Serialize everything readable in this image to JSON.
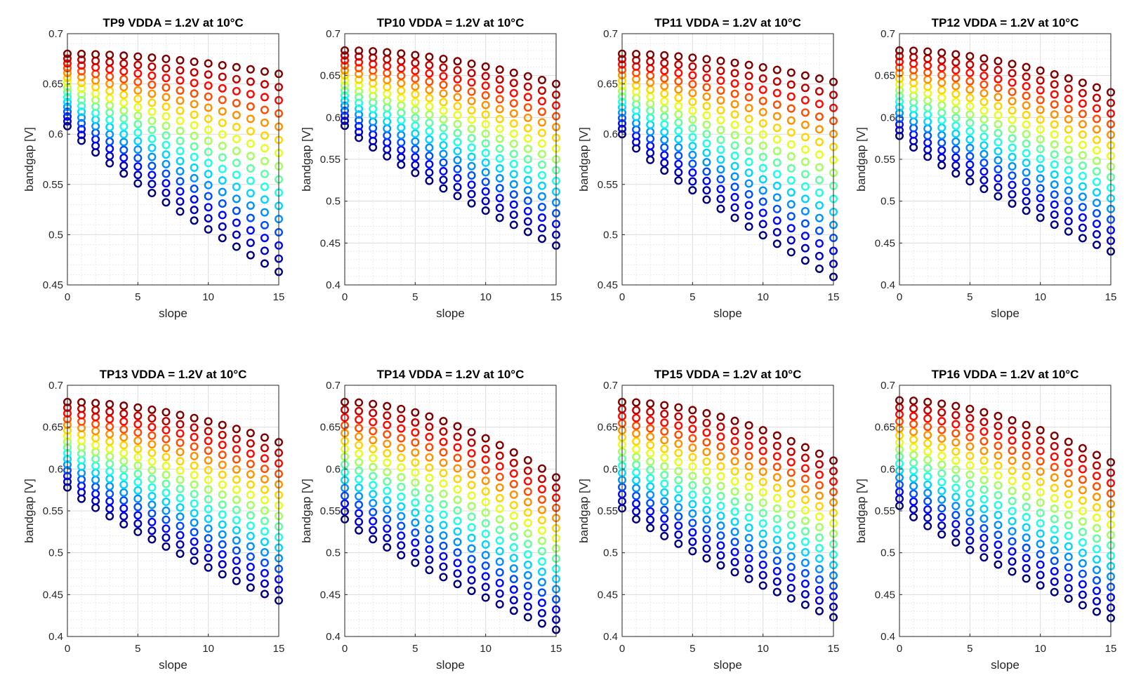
{
  "figure": {
    "background": "#ffffff"
  },
  "chart_data": [
    {
      "type": "scatter",
      "title": "TP9 VDDA = 1.2V at 10°C",
      "xlabel": "slope",
      "ylabel": "bandgap [V]",
      "xlim": [
        0,
        15
      ],
      "ylim": [
        0.45,
        0.7
      ],
      "xticks": [
        0,
        5,
        10,
        15
      ],
      "yticks": [
        0.45,
        0.5,
        0.55,
        0.6,
        0.65,
        0.7
      ],
      "ytick_labels": [
        "0.45",
        "0.5",
        "0.55",
        "0.6",
        "0.65",
        "0.7"
      ],
      "top": 0.68,
      "x0_bottom": 0.608,
      "x15_top": 0.66,
      "x15_bottom": 0.463,
      "levels": 16,
      "colormap": "jet",
      "grid": true
    },
    {
      "type": "scatter",
      "title": "TP10 VDDA = 1.2V at 10°C",
      "xlabel": "slope",
      "ylabel": "bandgap [V]",
      "xlim": [
        0,
        15
      ],
      "ylim": [
        0.4,
        0.7
      ],
      "xticks": [
        0,
        5,
        10,
        15
      ],
      "yticks": [
        0.4,
        0.45,
        0.5,
        0.55,
        0.6,
        0.65,
        0.7
      ],
      "ytick_labels": [
        "0.4",
        "0.45",
        "0.5",
        "0.55",
        "0.6",
        "0.65",
        "0.7"
      ],
      "top": 0.68,
      "x0_bottom": 0.59,
      "x15_top": 0.64,
      "x15_bottom": 0.447,
      "levels": 16,
      "colormap": "jet",
      "grid": true
    },
    {
      "type": "scatter",
      "title": "TP11 VDDA = 1.2V at 10°C",
      "xlabel": "slope",
      "ylabel": "bandgap [V]",
      "xlim": [
        0,
        15
      ],
      "ylim": [
        0.45,
        0.7
      ],
      "xticks": [
        0,
        5,
        10,
        15
      ],
      "yticks": [
        0.45,
        0.5,
        0.55,
        0.6,
        0.65,
        0.7
      ],
      "ytick_labels": [
        "0.45",
        "0.5",
        "0.55",
        "0.6",
        "0.65",
        "0.7"
      ],
      "top": 0.68,
      "x0_bottom": 0.6,
      "x15_top": 0.652,
      "x15_bottom": 0.458,
      "levels": 16,
      "colormap": "jet",
      "grid": true
    },
    {
      "type": "scatter",
      "title": "TP12 VDDA = 1.2V at 10°C",
      "xlabel": "slope",
      "ylabel": "bandgap [V]",
      "xlim": [
        0,
        15
      ],
      "ylim": [
        0.4,
        0.7
      ],
      "xticks": [
        0,
        5,
        10,
        15
      ],
      "yticks": [
        0.4,
        0.45,
        0.5,
        0.55,
        0.6,
        0.65,
        0.7
      ],
      "ytick_labels": [
        "0.4",
        "0.45",
        "0.5",
        "0.55",
        "0.6",
        "0.65",
        "0.7"
      ],
      "top": 0.68,
      "x0_bottom": 0.578,
      "x15_top": 0.63,
      "x15_bottom": 0.44,
      "levels": 16,
      "colormap": "jet",
      "grid": true
    },
    {
      "type": "scatter",
      "title": "TP13 VDDA = 1.2V at 10°C",
      "xlabel": "slope",
      "ylabel": "bandgap [V]",
      "xlim": [
        0,
        15
      ],
      "ylim": [
        0.4,
        0.7
      ],
      "xticks": [
        0,
        5,
        10,
        15
      ],
      "yticks": [
        0.4,
        0.45,
        0.5,
        0.55,
        0.6,
        0.65,
        0.7
      ],
      "ytick_labels": [
        "0.4",
        "0.45",
        "0.5",
        "0.55",
        "0.6",
        "0.65",
        "0.7"
      ],
      "top": 0.68,
      "x0_bottom": 0.578,
      "x15_top": 0.632,
      "x15_bottom": 0.443,
      "levels": 16,
      "colormap": "jet",
      "grid": true
    },
    {
      "type": "scatter",
      "title": "TP14 VDDA = 1.2V at 10°C",
      "xlabel": "slope",
      "ylabel": "bandgap [V]",
      "xlim": [
        0,
        15
      ],
      "ylim": [
        0.4,
        0.7
      ],
      "xticks": [
        0,
        5,
        10,
        15
      ],
      "yticks": [
        0.4,
        0.45,
        0.5,
        0.55,
        0.6,
        0.65,
        0.7
      ],
      "ytick_labels": [
        "0.4",
        "0.45",
        "0.5",
        "0.55",
        "0.6",
        "0.65",
        "0.7"
      ],
      "top": 0.68,
      "x0_bottom": 0.54,
      "x15_top": 0.59,
      "x15_bottom": 0.408,
      "levels": 16,
      "colormap": "jet",
      "grid": true
    },
    {
      "type": "scatter",
      "title": "TP15 VDDA = 1.2V at 10°C",
      "xlabel": "slope",
      "ylabel": "bandgap [V]",
      "xlim": [
        0,
        15
      ],
      "ylim": [
        0.4,
        0.7
      ],
      "xticks": [
        0,
        5,
        10,
        15
      ],
      "yticks": [
        0.4,
        0.45,
        0.5,
        0.55,
        0.6,
        0.65,
        0.7
      ],
      "ytick_labels": [
        "0.4",
        "0.45",
        "0.5",
        "0.55",
        "0.6",
        "0.65",
        "0.7"
      ],
      "top": 0.68,
      "x0_bottom": 0.553,
      "x15_top": 0.61,
      "x15_bottom": 0.423,
      "levels": 16,
      "colormap": "jet",
      "grid": true
    },
    {
      "type": "scatter",
      "title": "TP16 VDDA = 1.2V at 10°C",
      "xlabel": "slope",
      "ylabel": "bandgap [V]",
      "xlim": [
        0,
        15
      ],
      "ylim": [
        0.4,
        0.7
      ],
      "xticks": [
        0,
        5,
        10,
        15
      ],
      "yticks": [
        0.4,
        0.45,
        0.5,
        0.55,
        0.6,
        0.65,
        0.7
      ],
      "ytick_labels": [
        "0.4",
        "0.45",
        "0.5",
        "0.55",
        "0.6",
        "0.65",
        "0.7"
      ],
      "top": 0.682,
      "x0_bottom": 0.556,
      "x15_top": 0.608,
      "x15_bottom": 0.422,
      "levels": 16,
      "colormap": "jet",
      "grid": true
    }
  ]
}
